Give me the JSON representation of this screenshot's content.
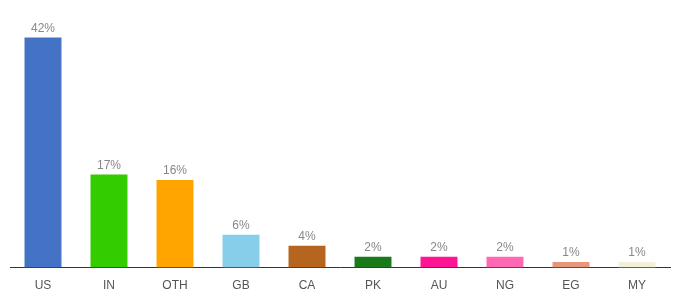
{
  "chart_data": {
    "type": "bar",
    "categories": [
      "US",
      "IN",
      "OTH",
      "GB",
      "CA",
      "PK",
      "AU",
      "NG",
      "EG",
      "MY"
    ],
    "values": [
      42,
      17,
      16,
      6,
      4,
      2,
      2,
      2,
      1,
      1
    ],
    "value_labels": [
      "42%",
      "17%",
      "16%",
      "6%",
      "4%",
      "2%",
      "2%",
      "2%",
      "1%",
      "1%"
    ],
    "colors": [
      "#4472C4",
      "#33CC00",
      "#FFA500",
      "#87CEEB",
      "#B5651D",
      "#1A7A1A",
      "#FF1493",
      "#FF69B4",
      "#E8967A",
      "#F5F0DC"
    ],
    "ylim": [
      0,
      47
    ],
    "grid": false,
    "data_labels": true,
    "tick_labels": "x"
  }
}
